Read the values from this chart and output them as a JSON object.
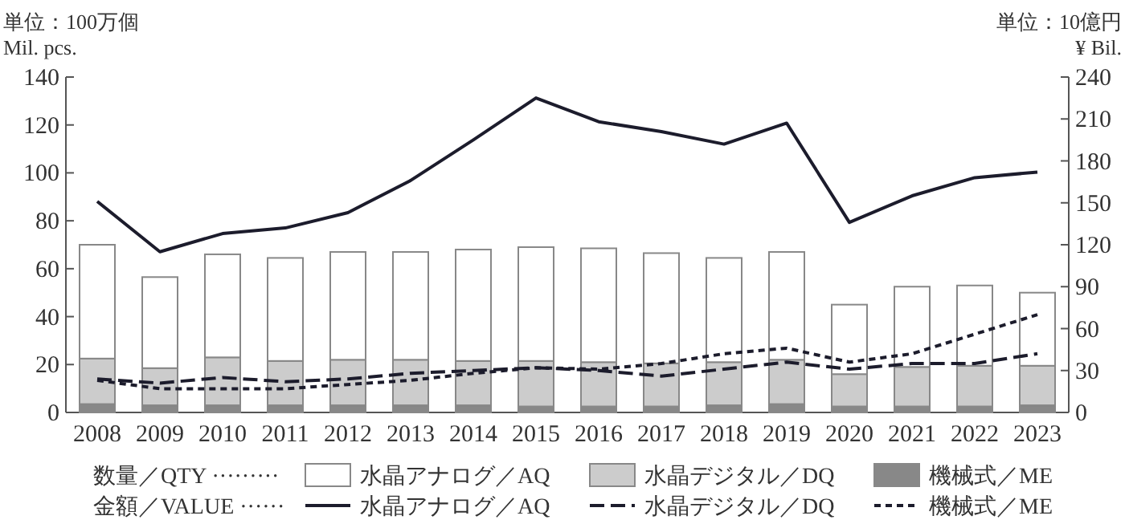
{
  "chart_data": {
    "type": "bar",
    "stacked": true,
    "ylabel": "単位：100万個\nMil. pcs.",
    "y2label": "単位：10億円\n¥ Bil.",
    "categories": [
      "2008",
      "2009",
      "2010",
      "2011",
      "2012",
      "2013",
      "2014",
      "2015",
      "2016",
      "2017",
      "2018",
      "2019",
      "2020",
      "2021",
      "2022",
      "2023"
    ],
    "ylim": [
      0,
      140
    ],
    "yticks": [
      0,
      20,
      40,
      60,
      80,
      100,
      120,
      140
    ],
    "y2lim": [
      0,
      240
    ],
    "y2ticks": [
      0,
      30,
      60,
      90,
      120,
      150,
      180,
      210,
      240
    ],
    "legend": "bottom",
    "annotations": [
      "数量／QTY ·········",
      "金額／VALUE ······"
    ],
    "series": [
      {
        "name": "機械式／ME",
        "color": "#888888",
        "values": [
          3.5,
          3,
          3,
          3,
          3,
          3,
          3,
          2.5,
          2.5,
          2.5,
          3,
          3.5,
          2.5,
          2.5,
          2.5,
          3
        ]
      },
      {
        "name": "水晶デジタル／DQ",
        "color": "#cccccc",
        "values": [
          19,
          15.5,
          20,
          18.5,
          19,
          19,
          18.5,
          19,
          18.5,
          18,
          18,
          18.5,
          13.5,
          16.5,
          17,
          16.5
        ]
      },
      {
        "name": "水晶アナログ／AQ",
        "color": "#ffffff",
        "values": [
          47.5,
          38,
          43,
          43,
          45,
          45,
          46.5,
          47.5,
          47.5,
          46,
          43.5,
          45,
          29,
          33.5,
          33.5,
          30.5
        ]
      },
      {
        "name": "水晶アナログ／AQ",
        "type": "line",
        "axis": "y2",
        "line_style": "solid",
        "color": "#1c1c2c",
        "values": [
          151,
          115,
          128,
          132,
          143,
          166,
          195,
          225,
          208,
          201,
          192,
          207,
          136,
          155,
          168,
          172
        ]
      },
      {
        "name": "水晶デジタル／DQ",
        "type": "line",
        "axis": "y2",
        "line_style": "dashed",
        "color": "#1c1c2c",
        "values": [
          24,
          21,
          25,
          22,
          24,
          28,
          30,
          32,
          30,
          26,
          31,
          36,
          31,
          35,
          35,
          42
        ]
      },
      {
        "name": "機械式／ME",
        "type": "line",
        "axis": "y2",
        "line_style": "dotted",
        "color": "#1c1c2c",
        "values": [
          23,
          17,
          17,
          17,
          20,
          23,
          28,
          32,
          31,
          35,
          42,
          46,
          36,
          42,
          56,
          70
        ]
      }
    ]
  }
}
